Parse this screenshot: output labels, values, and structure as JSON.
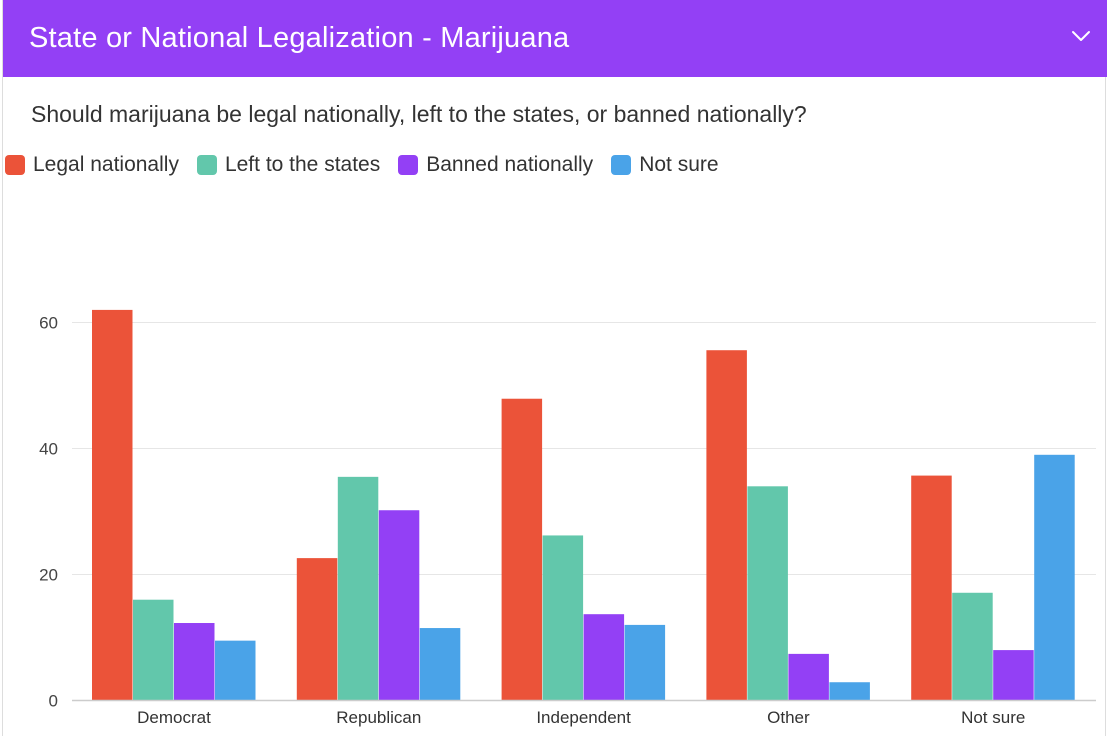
{
  "header": {
    "title": "State or National Legalization - Marijuana",
    "collapse_icon": "chevron-down-icon"
  },
  "question": "Should marijuana be legal nationally, left to the states, or banned nationally?",
  "colors": {
    "header_bg": "#9340f5",
    "legal_nationally": "#eb5339",
    "left_to_states": "#62c7ab",
    "banned_nationally": "#9340f5",
    "not_sure": "#4aa3e8"
  },
  "chart_data": {
    "type": "bar",
    "categories": [
      "Democrat",
      "Republican",
      "Independent",
      "Other",
      "Not sure"
    ],
    "series": [
      {
        "name": "Legal nationally",
        "color": "#eb5339",
        "values": [
          62,
          22.6,
          47.9,
          55.6,
          35.7
        ]
      },
      {
        "name": "Left to the states",
        "color": "#62c7ab",
        "values": [
          16,
          35.5,
          26.2,
          34,
          17.1
        ]
      },
      {
        "name": "Banned nationally",
        "color": "#9340f5",
        "values": [
          12.3,
          30.2,
          13.7,
          7.4,
          8
        ]
      },
      {
        "name": "Not sure",
        "color": "#4aa3e8",
        "values": [
          9.5,
          11.5,
          12,
          2.9,
          39
        ]
      }
    ],
    "y_ticks": [
      "0",
      "20",
      "40",
      "60"
    ],
    "ylim": [
      0,
      75
    ],
    "grid": true,
    "legend_position": "top-left"
  }
}
